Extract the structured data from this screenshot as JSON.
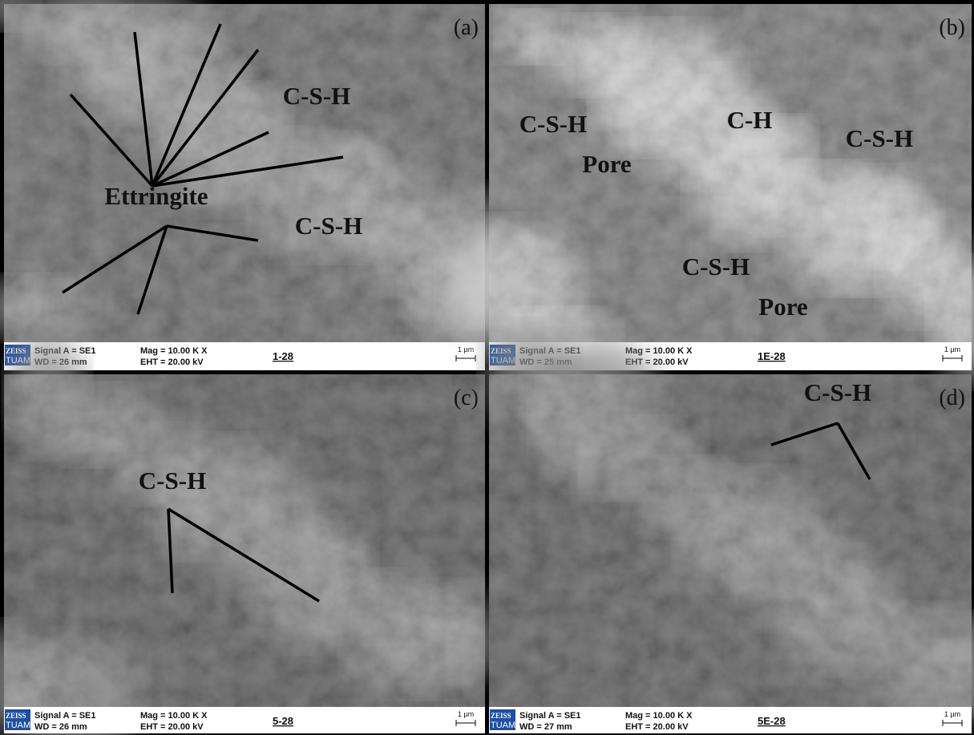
{
  "panels": [
    {
      "label": "(a)",
      "annotations": [
        "C-S-H",
        "Ettringite",
        "C-S-H"
      ],
      "footer": {
        "brand": "ZEISS",
        "brand2": "TUAM",
        "signal": "Signal A = SE1",
        "wd": "WD =  26 mm",
        "mag": "Mag =  10.00 K X",
        "eht": "EHT = 20.00 kV",
        "sample": "1-28",
        "scale": "1 µm"
      }
    },
    {
      "label": "(b)",
      "annotations": [
        "C-S-H",
        "Pore",
        "C-H",
        "C-S-H",
        "C-S-H",
        "Pore"
      ],
      "footer": {
        "brand": "ZEISS",
        "brand2": "TUAM",
        "signal": "Signal A = SE1",
        "wd": "WD =  25 mm",
        "mag": "Mag =  10.00 K X",
        "eht": "EHT = 20.00 kV",
        "sample": "1E-28",
        "scale": "1 µm"
      }
    },
    {
      "label": "(c)",
      "annotations": [
        "C-S-H"
      ],
      "footer": {
        "brand": "ZEISS",
        "brand2": "TUAM",
        "signal": "Signal A = SE1",
        "wd": "WD =  26 mm",
        "mag": "Mag =  10.00 K X",
        "eht": "EHT = 20.00 kV",
        "sample": "5-28",
        "scale": "1 µm"
      }
    },
    {
      "label": "(d)",
      "annotations": [
        "C-S-H"
      ],
      "footer": {
        "brand": "ZEISS",
        "brand2": "TUAM",
        "signal": "Signal A = SE1",
        "wd": "WD =  27 mm",
        "mag": "Mag =  10.00 K X",
        "eht": "EHT = 20.00 kV",
        "sample": "5E-28",
        "scale": "1 µm"
      }
    }
  ]
}
